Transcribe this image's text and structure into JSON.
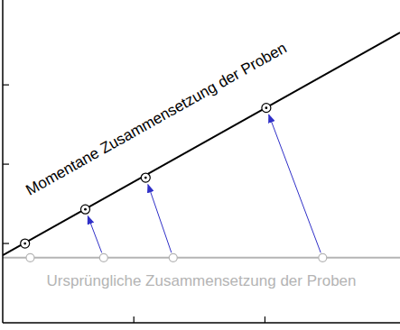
{
  "chart_data": {
    "type": "line",
    "xlim": [
      0,
      3.03
    ],
    "ylim": [
      0,
      4.07
    ],
    "xticks": [
      1,
      2
    ],
    "yticks": [
      1,
      2,
      3
    ],
    "tick_labels": false,
    "grid": false,
    "series": [
      {
        "name": "Momentane Zusammensetzung der Proben",
        "type": "line",
        "color": "#000000",
        "x": [
          0,
          3.03
        ],
        "values": [
          0.85,
          3.66
        ]
      },
      {
        "name": "Ursprüngliche Zusammensetzung der Proben",
        "type": "line",
        "color": "#b4b4b4",
        "x": [
          0,
          3.03
        ],
        "values": [
          0.82,
          0.82
        ]
      },
      {
        "type": "scatter",
        "marker": "circle",
        "color": "#b4b4b4",
        "x": [
          0.21,
          0.77,
          1.3,
          2.44
        ],
        "values": [
          0.82,
          0.82,
          0.82,
          0.82
        ]
      },
      {
        "type": "scatter",
        "marker": "circle-dot",
        "color": "#000000",
        "x": [
          0.17,
          0.63,
          1.09,
          2.01
        ],
        "values": [
          1.0,
          1.43,
          1.83,
          2.71
        ]
      }
    ]
  }
}
